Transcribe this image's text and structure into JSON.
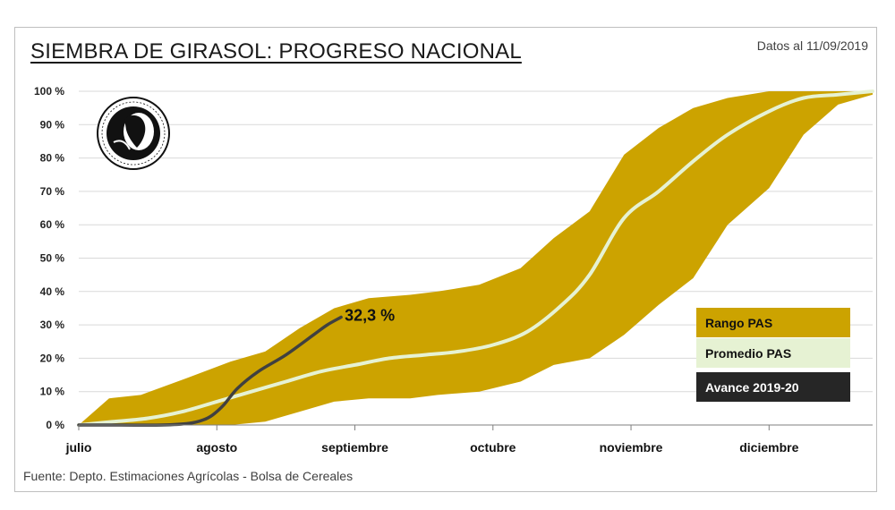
{
  "header": {
    "title": "SIEMBRA DE GIRASOL: PROGRESO NACIONAL",
    "date_note": "Datos al 11/09/2019",
    "source": "Fuente: Depto. Estimaciones Agrícolas - Bolsa de Cereales"
  },
  "colors": {
    "range": "#CCA300",
    "average": "#E6F2D3",
    "current": "#404040",
    "grid": "#d9d9d9"
  },
  "chart_data": {
    "type": "area",
    "title": "SIEMBRA DE GIRASOL: PROGRESO NACIONAL",
    "xlabel": "",
    "ylabel": "",
    "ylim": [
      0,
      100
    ],
    "y_ticks": [
      "0 %",
      "10 %",
      "20 %",
      "30 %",
      "40 %",
      "50 %",
      "60 %",
      "70 %",
      "80 %",
      "90 %",
      "100 %"
    ],
    "x_ticks": [
      "julio",
      "agosto",
      "septiembre",
      "octubre",
      "noviembre",
      "diciembre"
    ],
    "x_domain_months": [
      0,
      5.75
    ],
    "grid": true,
    "legend_position": "right",
    "annotation": "32,3 %",
    "series": [
      {
        "name": "Rango PAS",
        "kind": "band",
        "x": [
          0,
          0.22,
          0.45,
          0.78,
          1.1,
          1.35,
          1.6,
          1.85,
          2.1,
          2.4,
          2.6,
          2.9,
          3.2,
          3.44,
          3.7,
          3.95,
          4.2,
          4.45,
          4.7,
          5.0,
          5.25,
          5.5,
          5.75
        ],
        "upper": [
          0,
          8,
          9,
          14,
          19,
          22,
          29,
          35,
          38,
          39,
          40,
          42,
          47,
          56,
          64,
          81,
          89,
          95,
          98,
          100,
          100,
          100,
          100
        ],
        "lower": [
          0,
          0,
          0,
          0,
          0,
          1,
          4,
          7,
          8,
          8,
          9,
          10,
          13,
          18,
          20,
          27,
          36,
          44,
          60,
          71,
          87,
          96,
          99
        ]
      },
      {
        "name": "Promedio PAS",
        "kind": "line",
        "x": [
          0,
          0.25,
          0.5,
          0.75,
          1.0,
          1.25,
          1.5,
          1.75,
          2.0,
          2.25,
          2.5,
          2.75,
          3.0,
          3.25,
          3.5,
          3.7,
          3.95,
          4.2,
          4.45,
          4.7,
          5.0,
          5.25,
          5.5,
          5.75
        ],
        "y": [
          0,
          1,
          2,
          4,
          7,
          10,
          13,
          16,
          18,
          20,
          21,
          22,
          24,
          28,
          36,
          45,
          62,
          70,
          79,
          87,
          94,
          98,
          99,
          100
        ]
      },
      {
        "name": "Avance 2019-20",
        "kind": "line",
        "x": [
          0,
          0.3,
          0.6,
          0.8,
          0.9,
          0.97,
          1.05,
          1.15,
          1.3,
          1.5,
          1.7,
          1.8,
          1.9
        ],
        "y": [
          0,
          0,
          0,
          0.5,
          1.5,
          3,
          6,
          11,
          16,
          21,
          27,
          30,
          32.3
        ]
      }
    ]
  }
}
